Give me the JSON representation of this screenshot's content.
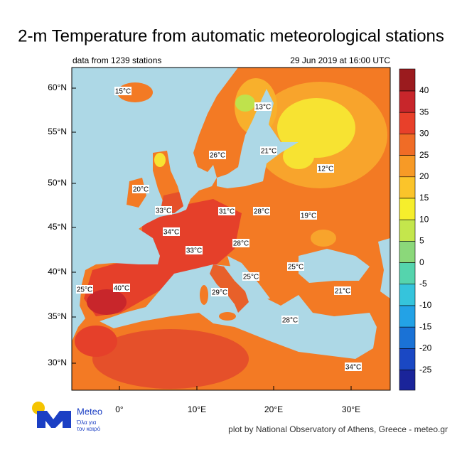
{
  "header": {
    "title": "2-m Temperature from automatic meteorological stations",
    "left": "data from 1239 stations",
    "right": "29 Jun 2019 at 16:00 UTC"
  },
  "map": {
    "lat_labels": [
      "60°N",
      "55°N",
      "50°N",
      "45°N",
      "40°N",
      "35°N",
      "30°N"
    ],
    "lon_labels": [
      "0°",
      "10°E",
      "20°E",
      "30°E"
    ],
    "stations": [
      "15°C",
      "13°C",
      "26°C",
      "21°C",
      "12°C",
      "20°C",
      "33°C",
      "31°C",
      "28°C",
      "19°C",
      "34°C",
      "28°C",
      "33°C",
      "25°C",
      "25°C",
      "25°C",
      "40°C",
      "29°C",
      "21°C",
      "28°C",
      "34°C"
    ]
  },
  "colorbar": {
    "values": [
      40,
      35,
      30,
      25,
      20,
      15,
      10,
      5,
      0,
      -5,
      -10,
      -15,
      -20,
      -25
    ],
    "colors": [
      "#9b1b1e",
      "#c8262b",
      "#e8402a",
      "#f06c26",
      "#f79a26",
      "#fbc42a",
      "#f6ee2c",
      "#c4e64c",
      "#8bd87a",
      "#55d4ad",
      "#35c4dc",
      "#23a2e6",
      "#1a72d6",
      "#1a48c4",
      "#1a249a"
    ]
  },
  "logo": {
    "name": "Meteo",
    "tagline_1": "Όλα για",
    "tagline_2": "τον καιρό"
  },
  "footer": "plot by National Observatory of Athens, Greece - meteo.gr"
}
